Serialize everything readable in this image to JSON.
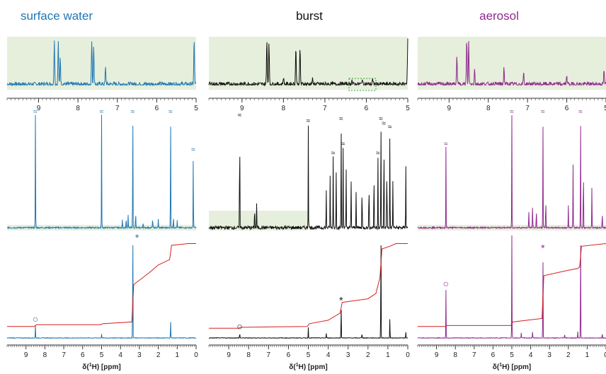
{
  "chart_data": {
    "type": "line",
    "columns": [
      {
        "title": "surface water",
        "color": "#1f77b4"
      },
      {
        "title": "burst",
        "color": "#111111"
      },
      {
        "title": "aerosol",
        "color": "#8e2a8e"
      }
    ],
    "xlabel": "δ(¹H) [ppm]",
    "xlabel_prefix": "δ(",
    "xlabel_sup": "1",
    "xlabel_suffix": "H) [ppm]",
    "highlight_color": "#e6efdb",
    "integral_color": "#d62020",
    "top_row": {
      "xlim": [
        9.8,
        5.0
      ],
      "ticks": [
        "9",
        "8",
        "7",
        "6",
        "5"
      ],
      "tick_values": [
        9,
        8,
        7,
        6,
        5
      ],
      "shading": "full"
    },
    "bottom_row": {
      "xlim": [
        10,
        0
      ],
      "ticks": [
        "9",
        "8",
        "7",
        "6",
        "5",
        "4",
        "3",
        "2",
        "1",
        "0"
      ],
      "tick_values": [
        9,
        8,
        7,
        6,
        5,
        4,
        3,
        2,
        1,
        0
      ]
    },
    "markers": {
      "circle": "○",
      "asterisk": "*",
      "break": "≈"
    },
    "peaks": {
      "surface_water": {
        "top": [
          [
            8.6,
            0.95
          ],
          [
            8.5,
            0.9
          ],
          [
            8.45,
            0.6
          ],
          [
            7.65,
            0.9
          ],
          [
            7.6,
            0.85
          ],
          [
            7.3,
            0.35
          ],
          [
            5.05,
            0.95
          ]
        ],
        "middle": [
          [
            8.5,
            0.98
          ],
          [
            5.0,
            0.98
          ],
          [
            3.35,
            0.98
          ],
          [
            1.35,
            0.98
          ],
          [
            0.15,
            0.65
          ],
          [
            3.9,
            0.08
          ],
          [
            3.7,
            0.1
          ],
          [
            3.6,
            0.12
          ],
          [
            3.2,
            0.15
          ],
          [
            2.8,
            0.06
          ],
          [
            2.3,
            0.1
          ],
          [
            2.0,
            0.08
          ],
          [
            1.2,
            0.12
          ],
          [
            1.0,
            0.06
          ]
        ],
        "bottom": [
          [
            8.5,
            0.12
          ],
          [
            5.0,
            0.04
          ],
          [
            3.35,
            0.98
          ],
          [
            1.35,
            0.17
          ]
        ]
      },
      "burst": {
        "top": [
          [
            8.4,
            0.95
          ],
          [
            8.35,
            0.9
          ],
          [
            7.7,
            0.8
          ],
          [
            7.6,
            0.75
          ],
          [
            8.0,
            0.15
          ],
          [
            7.3,
            0.1
          ],
          [
            6.35,
            0.1
          ],
          [
            6.1,
            0.12
          ],
          [
            5.85,
            0.1
          ],
          [
            5.0,
            0.98
          ]
        ],
        "middle": [
          [
            8.45,
            0.95
          ],
          [
            7.7,
            0.2
          ],
          [
            7.6,
            0.22
          ],
          [
            5.0,
            0.9
          ],
          [
            4.1,
            0.35
          ],
          [
            3.9,
            0.5
          ],
          [
            3.75,
            0.62
          ],
          [
            3.6,
            0.55
          ],
          [
            3.35,
            0.92
          ],
          [
            3.25,
            0.7
          ],
          [
            3.1,
            0.55
          ],
          [
            2.85,
            0.45
          ],
          [
            2.6,
            0.35
          ],
          [
            2.3,
            0.4
          ],
          [
            1.95,
            0.45
          ],
          [
            1.7,
            0.55
          ],
          [
            1.5,
            0.62
          ],
          [
            1.35,
            0.92
          ],
          [
            1.2,
            0.88
          ],
          [
            1.05,
            0.6
          ],
          [
            0.9,
            0.85
          ],
          [
            0.75,
            0.4
          ],
          [
            0.1,
            0.6
          ]
        ],
        "bottom": [
          [
            8.45,
            0.05
          ],
          [
            5.0,
            0.1
          ],
          [
            4.1,
            0.05
          ],
          [
            3.35,
            0.3
          ],
          [
            2.3,
            0.05
          ],
          [
            1.35,
            0.98
          ],
          [
            0.9,
            0.2
          ],
          [
            0.1,
            0.06
          ]
        ]
      },
      "aerosol": {
        "top": [
          [
            8.8,
            0.6
          ],
          [
            8.55,
            0.95
          ],
          [
            8.5,
            0.9
          ],
          [
            8.35,
            0.35
          ],
          [
            7.6,
            0.35
          ],
          [
            7.1,
            0.25
          ],
          [
            6.0,
            0.2
          ],
          [
            5.05,
            0.3
          ]
        ],
        "middle": [
          [
            8.5,
            0.7
          ],
          [
            5.0,
            0.98
          ],
          [
            4.1,
            0.15
          ],
          [
            3.9,
            0.2
          ],
          [
            3.7,
            0.18
          ],
          [
            3.35,
            0.98
          ],
          [
            3.2,
            0.3
          ],
          [
            2.0,
            0.2
          ],
          [
            1.75,
            0.55
          ],
          [
            1.35,
            0.98
          ],
          [
            1.2,
            0.6
          ],
          [
            0.75,
            0.35
          ],
          [
            0.2,
            0.15
          ]
        ],
        "bottom": [
          [
            8.5,
            0.46
          ],
          [
            5.0,
            0.98
          ],
          [
            4.5,
            0.05
          ],
          [
            3.9,
            0.06
          ],
          [
            3.35,
            0.8
          ],
          [
            2.2,
            0.04
          ],
          [
            1.5,
            0.06
          ],
          [
            1.35,
            0.98
          ],
          [
            0.2,
            0.05
          ]
        ]
      }
    },
    "integrals": {
      "surface_water": [
        [
          10,
          0.05
        ],
        [
          8.55,
          0.05
        ],
        [
          8.45,
          0.07
        ],
        [
          5.05,
          0.07
        ],
        [
          4.95,
          0.08
        ],
        [
          3.4,
          0.1
        ],
        [
          3.3,
          0.52
        ],
        [
          2.5,
          0.65
        ],
        [
          2.0,
          0.74
        ],
        [
          1.4,
          0.8
        ],
        [
          1.3,
          0.96
        ],
        [
          0.4,
          0.98
        ],
        [
          0,
          0.98
        ]
      ],
      "burst": [
        [
          10,
          0.03
        ],
        [
          8.5,
          0.03
        ],
        [
          8.4,
          0.04
        ],
        [
          5.05,
          0.05
        ],
        [
          4.95,
          0.08
        ],
        [
          4.0,
          0.12
        ],
        [
          3.4,
          0.2
        ],
        [
          3.3,
          0.32
        ],
        [
          2.0,
          0.36
        ],
        [
          1.6,
          0.42
        ],
        [
          1.4,
          0.6
        ],
        [
          1.3,
          0.92
        ],
        [
          0.9,
          0.95
        ],
        [
          0.6,
          0.98
        ],
        [
          0,
          0.98
        ]
      ],
      "aerosol": [
        [
          10,
          0.05
        ],
        [
          8.55,
          0.05
        ],
        [
          8.45,
          0.06
        ],
        [
          5.05,
          0.06
        ],
        [
          4.95,
          0.1
        ],
        [
          3.4,
          0.14
        ],
        [
          3.3,
          0.62
        ],
        [
          2.0,
          0.68
        ],
        [
          1.5,
          0.7
        ],
        [
          1.4,
          0.72
        ],
        [
          1.3,
          0.95
        ],
        [
          0,
          0.98
        ]
      ]
    }
  }
}
